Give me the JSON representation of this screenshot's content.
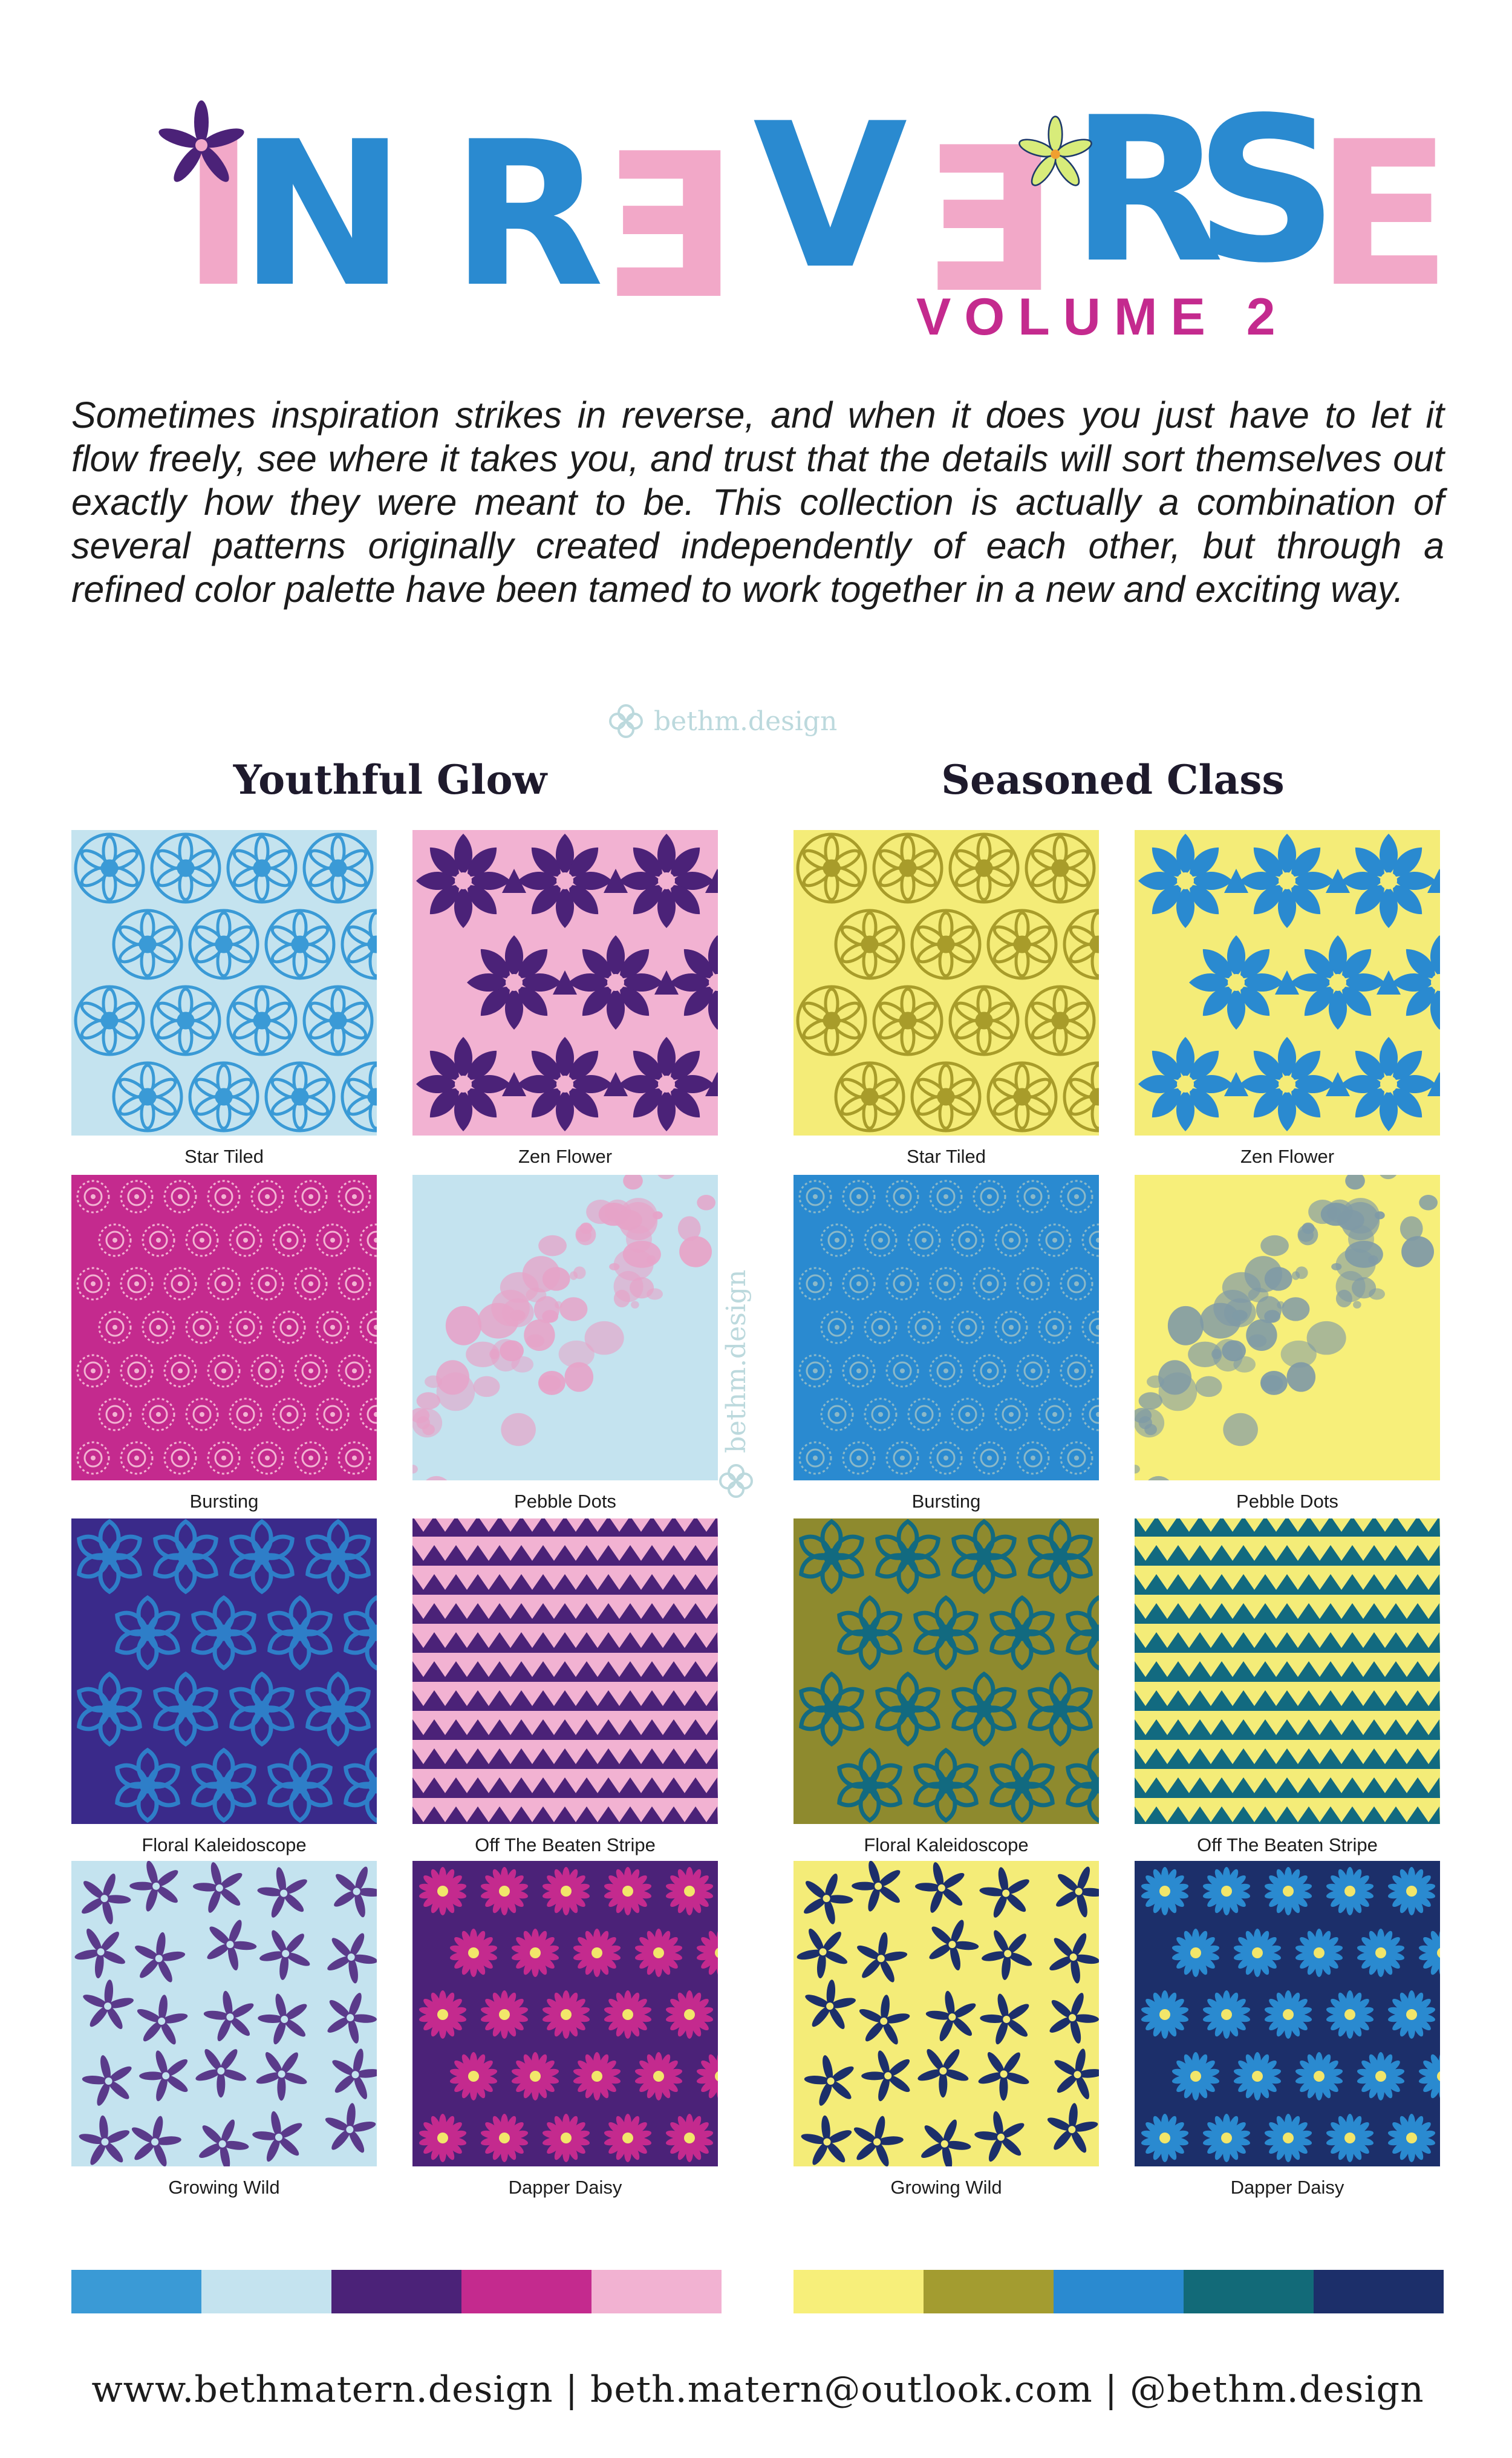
{
  "title": {
    "letters": [
      "I",
      "N",
      "R",
      "Ǝ",
      "V",
      "Ǝ",
      "R",
      "S",
      "E"
    ],
    "volume": "VOLUME 2"
  },
  "intro": "Sometimes inspiration strikes in reverse, and when it does you just have to let it flow freely, see where it takes you, and trust that the details will sort themselves out exactly how they were meant to be. This collection is actually a combination of several patterns originally created independently of each other, but through a refined color palette have been tamed to work together in a new and exciting way.",
  "watermark": "bethm.design",
  "collections": [
    {
      "name": "Youthful Glow",
      "swatches": [
        {
          "label": "Star Tiled",
          "pattern": "star",
          "bg": "#c4e3ef",
          "fg": "#3a9ad6"
        },
        {
          "label": "Zen Flower",
          "pattern": "zen",
          "bg": "#f2b2d2",
          "fg": "#4b2278"
        },
        {
          "label": "Bursting",
          "pattern": "burst",
          "bg": "#c42a8e",
          "fg": "#f2b2d2"
        },
        {
          "label": "Pebble Dots",
          "pattern": "pebble",
          "bg": "#c4e3ef",
          "fg": "#e6a3c8"
        },
        {
          "label": "Floral Kaleidoscope",
          "pattern": "kaleido",
          "bg": "#3a2a8a",
          "fg": "#2e7ec8"
        },
        {
          "label": "Off The Beaten Stripe",
          "pattern": "stripe",
          "bg": "#f2b2d2",
          "fg": "#4b2278"
        },
        {
          "label": "Growing Wild",
          "pattern": "wild",
          "bg": "#c4e3ef",
          "fg": "#5a3a8a"
        },
        {
          "label": "Dapper Daisy",
          "pattern": "daisy",
          "bg": "#4b2278",
          "fg": "#c42a8e"
        }
      ],
      "palette": [
        "#3a9ad6",
        "#c4e3ef",
        "#4b2278",
        "#c42a8e",
        "#f2b2d2"
      ]
    },
    {
      "name": "Seasoned Class",
      "swatches": [
        {
          "label": "Star Tiled",
          "pattern": "star",
          "bg": "#f4ec78",
          "fg": "#a89c2a"
        },
        {
          "label": "Zen Flower",
          "pattern": "zen",
          "bg": "#f4ec78",
          "fg": "#2a8ad0"
        },
        {
          "label": "Bursting",
          "pattern": "burst",
          "bg": "#2a8ad0",
          "fg": "#8ab8c8"
        },
        {
          "label": "Pebble Dots",
          "pattern": "pebble",
          "bg": "#f7ef7a",
          "fg": "#7f9aa6"
        },
        {
          "label": "Floral Kaleidoscope",
          "pattern": "kaleido",
          "bg": "#8e8a2e",
          "fg": "#126a80"
        },
        {
          "label": "Off The Beaten Stripe",
          "pattern": "stripe",
          "bg": "#f4ec78",
          "fg": "#126a80"
        },
        {
          "label": "Growing Wild",
          "pattern": "wild",
          "bg": "#f4ec78",
          "fg": "#1c2f6a"
        },
        {
          "label": "Dapper Daisy",
          "pattern": "daisy",
          "bg": "#1c2f6a",
          "fg": "#2a8ad0"
        }
      ],
      "palette": [
        "#f7ef7a",
        "#a39c30",
        "#2a8ad0",
        "#126a78",
        "#1c2f6a"
      ]
    }
  ],
  "footer": "www.bethmatern.design  |  beth.matern@outlook.com  |  @bethm.design",
  "colors": {
    "pink": "#f2a8c8",
    "blue": "#2a8ad0",
    "magenta": "#c42a8e",
    "purple": "#4b2278"
  }
}
